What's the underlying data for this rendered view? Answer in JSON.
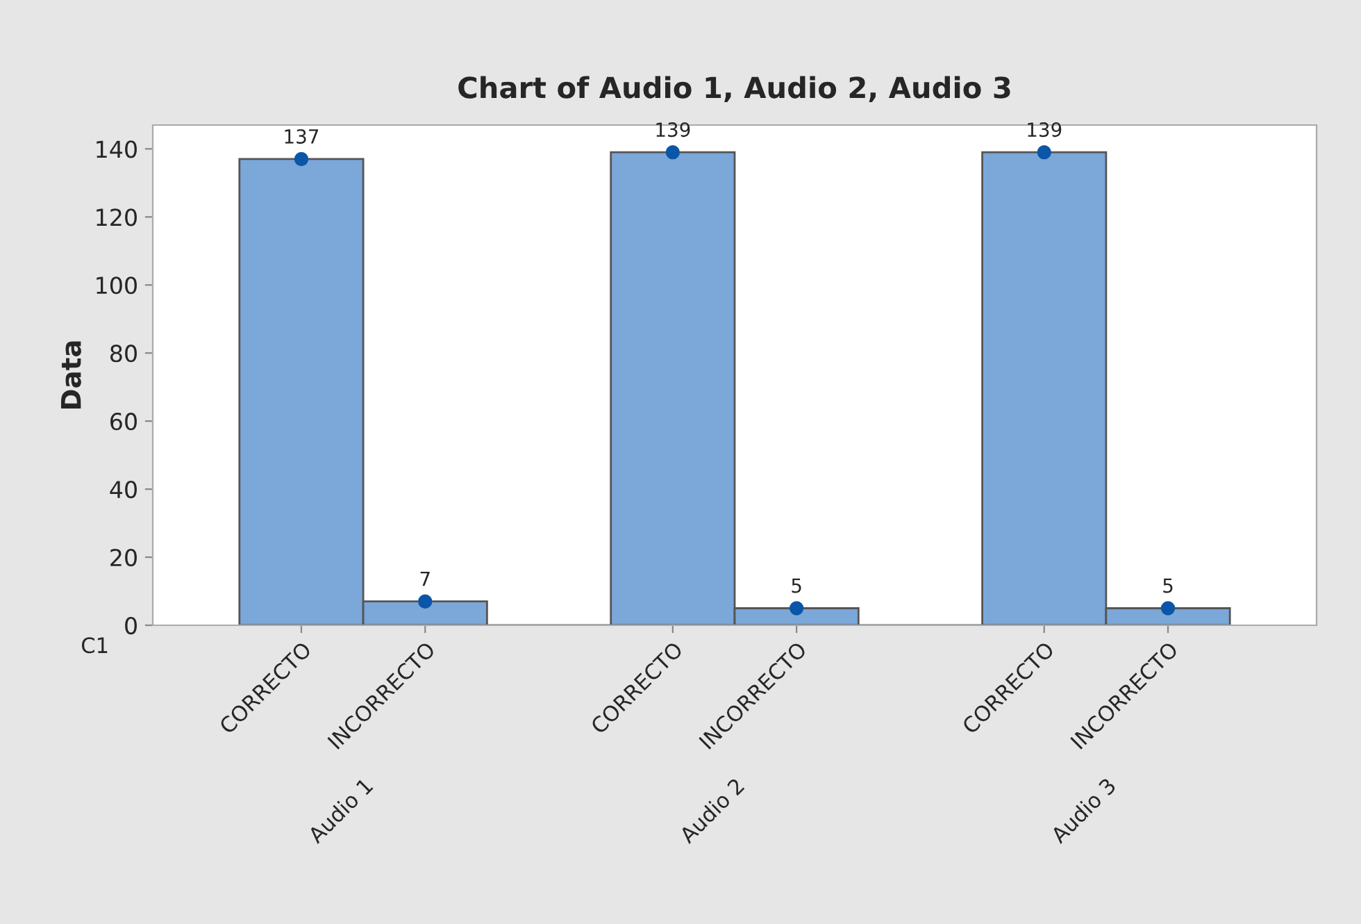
{
  "chart_data": {
    "type": "bar",
    "title": "Chart of Audio 1, Audio 2, Audio 3",
    "ylabel": "Data",
    "categories": [
      "CORRECTO",
      "INCORRECTO",
      null,
      "CORRECTO",
      "INCORRECTO",
      null,
      "CORRECTO",
      "INCORRECTO"
    ],
    "series": [
      {
        "color": "#7ba7d9",
        "values": [
          137,
          7,
          null,
          139,
          5,
          null,
          139,
          5
        ]
      },
      {
        "type": "scatter",
        "color": "#0b56a8",
        "marker": "circle",
        "values": [
          137,
          7,
          null,
          139,
          5,
          null,
          139,
          5
        ],
        "value_labels": [
          "137",
          "7",
          null,
          "139",
          "5",
          null,
          "139",
          "5"
        ]
      }
    ],
    "ylim": [
      0,
      147
    ],
    "yticks": [
      0,
      20,
      40,
      60,
      80,
      100,
      120,
      140
    ],
    "grid": false,
    "legend": false,
    "annotations": [
      "C1",
      "Audio 1",
      "Audio 2",
      "Audio 3"
    ]
  }
}
